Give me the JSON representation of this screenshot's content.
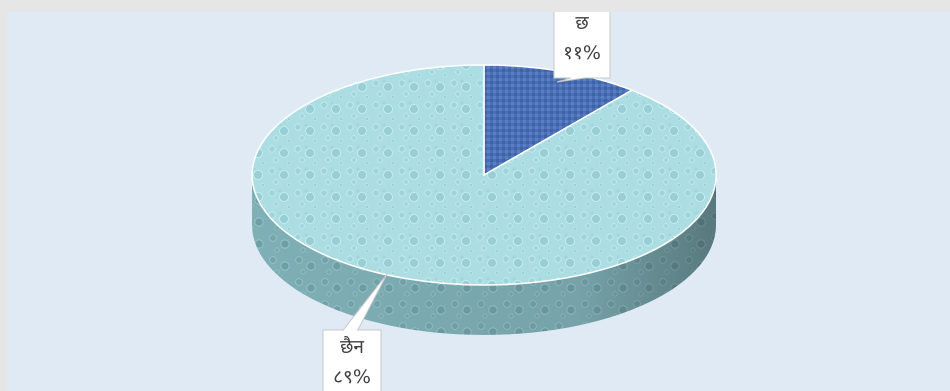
{
  "chart_data": {
    "type": "pie",
    "style": "3d-exploded-textured",
    "slices": [
      {
        "name": "छ",
        "value": 11,
        "label": "११%",
        "color": "#4a6fb5"
      },
      {
        "name": "छैन",
        "value": 89,
        "label": "८९%",
        "color": "#a8dde0"
      }
    ]
  }
}
